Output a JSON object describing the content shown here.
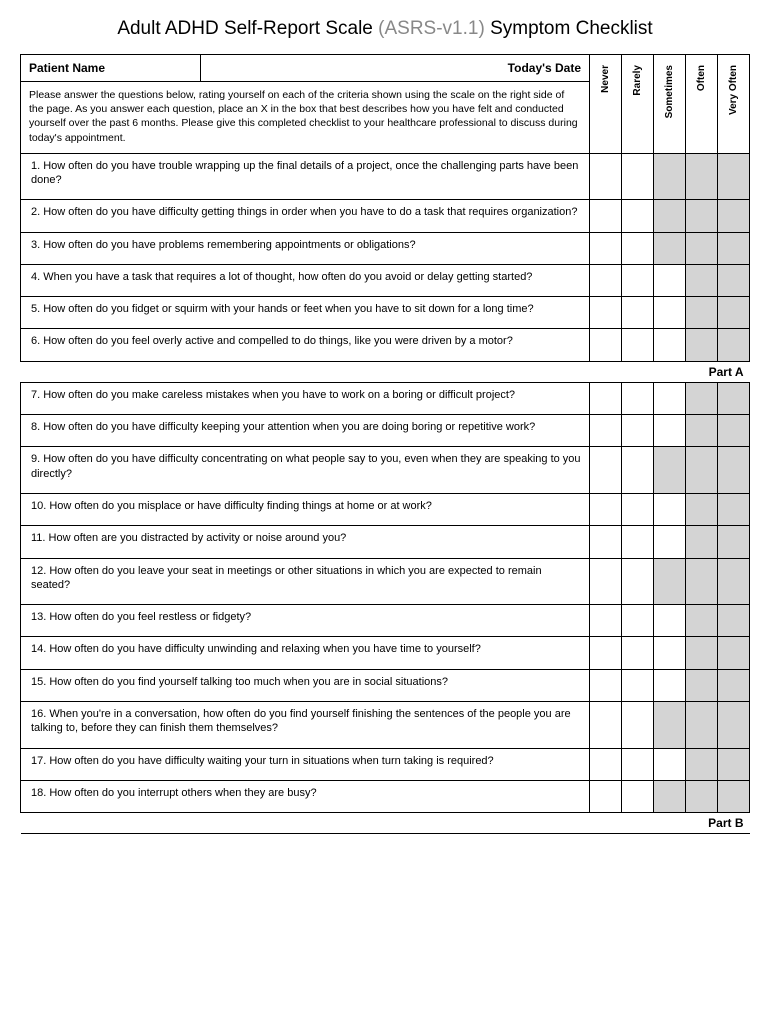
{
  "title_prefix": "Adult ADHD Self-Report Scale ",
  "title_gray": "(ASRS-v1.1)",
  "title_suffix": " Symptom Checklist",
  "patient_label": "Patient Name",
  "date_label": "Today's Date",
  "instructions": "Please answer the questions below, rating yourself on each of the criteria shown using the scale on the right side of the page. As you answer each question, place an X in the box that best describes how you have felt and conducted yourself over the past 6 months. Please give this completed checklist to your healthcare professional to discuss during today's appointment.",
  "scale_labels": [
    "Never",
    "Rarely",
    "Sometimes",
    "Often",
    "Very Often"
  ],
  "part_a_label": "Part A",
  "part_b_label": "Part B",
  "shaded_color": "#d4d4d4",
  "border_color": "#000000",
  "questions_a": [
    {
      "n": "1.",
      "text": "How often do you have trouble wrapping up the final details of a project, once the challenging parts have been done?",
      "shade": [
        2,
        3,
        4
      ]
    },
    {
      "n": "2.",
      "text": "How often do you have difficulty getting things in order when you have to do a task that requires organization?",
      "shade": [
        2,
        3,
        4
      ]
    },
    {
      "n": "3.",
      "text": "How often do you have problems remembering appointments or obligations?",
      "shade": [
        2,
        3,
        4
      ]
    },
    {
      "n": "4.",
      "text": "When you have a task that requires a lot of thought, how often do you avoid or delay getting started?",
      "shade": [
        3,
        4
      ]
    },
    {
      "n": "5.",
      "text": "How often do you fidget or squirm with your hands or feet when you have to sit down for a long time?",
      "shade": [
        3,
        4
      ]
    },
    {
      "n": "6.",
      "text": "How often do you feel overly active and compelled to do things, like you were driven by a motor?",
      "shade": [
        3,
        4
      ]
    }
  ],
  "questions_b": [
    {
      "n": "7.",
      "text": "How often do you make careless mistakes when you have to work on a boring or difficult project?",
      "shade": [
        3,
        4
      ]
    },
    {
      "n": "8.",
      "text": "How often do you have difficulty keeping your attention when you are doing boring or repetitive work?",
      "shade": [
        3,
        4
      ]
    },
    {
      "n": "9.",
      "text": "How often do you have difficulty concentrating on what people say to you, even when they are speaking to you directly?",
      "shade": [
        2,
        3,
        4
      ]
    },
    {
      "n": "10.",
      "text": "How often do you misplace or have difficulty finding things at home or at work?",
      "shade": [
        3,
        4
      ]
    },
    {
      "n": "11.",
      "text": "How often are you distracted by activity or noise around you?",
      "shade": [
        3,
        4
      ]
    },
    {
      "n": "12.",
      "text": "How often do you leave your seat in meetings or other situations in which you are expected to remain seated?",
      "shade": [
        2,
        3,
        4
      ]
    },
    {
      "n": "13.",
      "text": "How often do you feel restless or fidgety?",
      "shade": [
        3,
        4
      ]
    },
    {
      "n": "14.",
      "text": "How often do you have difficulty unwinding and relaxing when you have time to yourself?",
      "shade": [
        3,
        4
      ]
    },
    {
      "n": "15.",
      "text": "How often do you find yourself talking too much when you are in social situations?",
      "shade": [
        3,
        4
      ]
    },
    {
      "n": "16.",
      "text": "When you're in a conversation, how often do you find yourself finishing the sentences of the people you are talking to, before they can finish them themselves?",
      "shade": [
        2,
        3,
        4
      ]
    },
    {
      "n": "17.",
      "text": "How often do you have difficulty waiting your turn in situations when turn taking is required?",
      "shade": [
        3,
        4
      ]
    },
    {
      "n": "18.",
      "text": "How often do you interrupt others when they are busy?",
      "shade": [
        2,
        3,
        4
      ]
    }
  ]
}
